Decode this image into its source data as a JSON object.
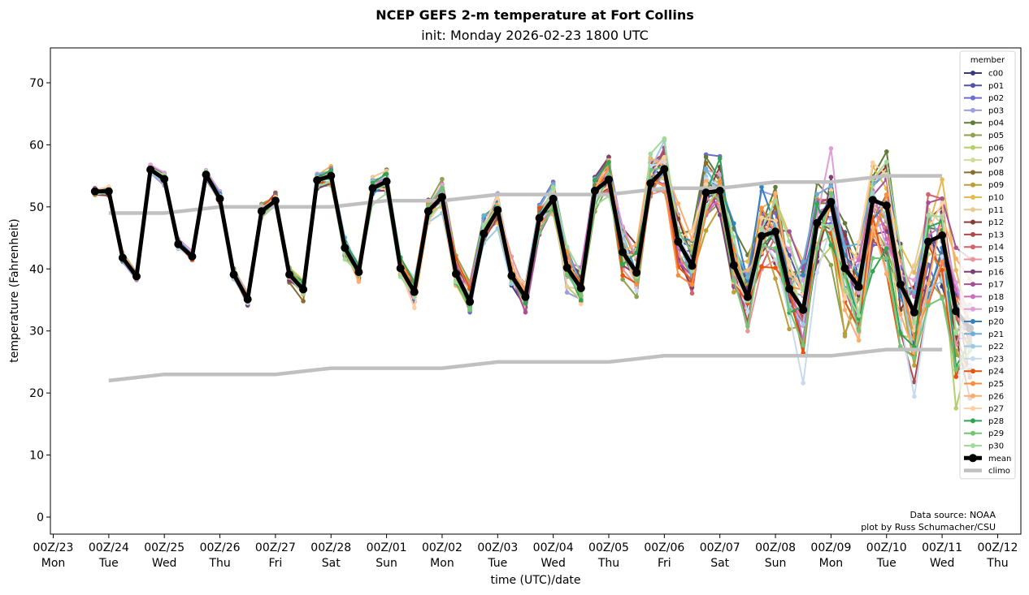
{
  "chart_data": {
    "type": "line",
    "title": "NCEP GEFS 2-m temperature at Fort Collins",
    "subtitle": "init: Monday 2026-02-23 1800 UTC",
    "xlabel": "time (UTC)/date",
    "ylabel": "temperature (Fahrenheit)",
    "ylim": [
      -2.8,
      75.8
    ],
    "yticks": [
      0,
      10,
      20,
      30,
      40,
      50,
      60,
      70
    ],
    "x_start": "2026-02-23 18Z",
    "x_step_hours": 6,
    "xlim_days": [
      -0.05,
      17.3
    ],
    "xticks": [
      {
        "day": 0,
        "line1": "00Z/23",
        "line2": "Mon"
      },
      {
        "day": 1,
        "line1": "00Z/24",
        "line2": "Tue"
      },
      {
        "day": 2,
        "line1": "00Z/25",
        "line2": "Wed"
      },
      {
        "day": 3,
        "line1": "00Z/26",
        "line2": "Thu"
      },
      {
        "day": 4,
        "line1": "00Z/27",
        "line2": "Fri"
      },
      {
        "day": 5,
        "line1": "00Z/28",
        "line2": "Sat"
      },
      {
        "day": 6,
        "line1": "00Z/01",
        "line2": "Sun"
      },
      {
        "day": 7,
        "line1": "00Z/02",
        "line2": "Mon"
      },
      {
        "day": 8,
        "line1": "00Z/03",
        "line2": "Tue"
      },
      {
        "day": 9,
        "line1": "00Z/04",
        "line2": "Wed"
      },
      {
        "day": 10,
        "line1": "00Z/05",
        "line2": "Thu"
      },
      {
        "day": 11,
        "line1": "00Z/06",
        "line2": "Fri"
      },
      {
        "day": 12,
        "line1": "00Z/07",
        "line2": "Sat"
      },
      {
        "day": 13,
        "line1": "00Z/08",
        "line2": "Sun"
      },
      {
        "day": 14,
        "line1": "00Z/09",
        "line2": "Mon"
      },
      {
        "day": 15,
        "line1": "00Z/10",
        "line2": "Tue"
      },
      {
        "day": 16,
        "line1": "00Z/11",
        "line2": "Wed"
      },
      {
        "day": 17,
        "line1": "00Z/12",
        "line2": "Thu"
      }
    ],
    "mean": [
      52.5,
      52.5,
      41.8,
      38.8,
      56.0,
      54.5,
      44.0,
      42.0,
      55.2,
      51.3,
      39.1,
      35.1,
      49.3,
      51.0,
      39.1,
      36.7,
      54.3,
      55.0,
      43.4,
      39.5,
      53.0,
      54.1,
      40.1,
      36.3,
      49.3,
      51.6,
      39.2,
      34.7,
      45.7,
      49.5,
      38.9,
      35.5,
      48.2,
      51.3,
      40.2,
      36.9,
      52.6,
      54.4,
      42.7,
      39.4,
      53.8,
      56.1,
      44.4,
      40.5,
      52.3,
      52.6,
      40.6,
      35.5,
      45.3,
      46.0,
      36.8,
      33.4,
      47.4,
      50.8,
      40.1,
      37.1,
      51.1,
      50.2,
      37.5,
      33.0,
      44.4,
      45.4,
      33.2,
      30.4
    ],
    "climo": {
      "days": [
        1,
        2,
        3,
        4,
        5,
        6,
        7,
        8,
        9,
        10,
        11,
        12,
        13,
        14,
        15,
        16
      ],
      "max": [
        49,
        49,
        50,
        50,
        50,
        51,
        51,
        52,
        52,
        52,
        53,
        53,
        54,
        54,
        55,
        55
      ],
      "min": [
        22,
        23,
        23,
        23,
        24,
        24,
        24,
        25,
        25,
        25,
        26,
        26,
        26,
        26,
        27,
        27
      ]
    },
    "members": [
      {
        "name": "c00",
        "color": "#393b79"
      },
      {
        "name": "p01",
        "color": "#5254a3"
      },
      {
        "name": "p02",
        "color": "#6b6ecf"
      },
      {
        "name": "p03",
        "color": "#9c9ede"
      },
      {
        "name": "p04",
        "color": "#637939"
      },
      {
        "name": "p05",
        "color": "#8ca252"
      },
      {
        "name": "p06",
        "color": "#b5cf6b"
      },
      {
        "name": "p07",
        "color": "#cedb9c"
      },
      {
        "name": "p08",
        "color": "#8c6d31"
      },
      {
        "name": "p09",
        "color": "#bd9e39"
      },
      {
        "name": "p10",
        "color": "#e7ba52"
      },
      {
        "name": "p11",
        "color": "#e7cb94"
      },
      {
        "name": "p12",
        "color": "#843c39"
      },
      {
        "name": "p13",
        "color": "#ad494a"
      },
      {
        "name": "p14",
        "color": "#d6616b"
      },
      {
        "name": "p15",
        "color": "#e7969c"
      },
      {
        "name": "p16",
        "color": "#7b4173"
      },
      {
        "name": "p17",
        "color": "#a55194"
      },
      {
        "name": "p18",
        "color": "#ce6dbd"
      },
      {
        "name": "p19",
        "color": "#de9ed6"
      },
      {
        "name": "p20",
        "color": "#3182bd"
      },
      {
        "name": "p21",
        "color": "#6baed6"
      },
      {
        "name": "p22",
        "color": "#9ecae1"
      },
      {
        "name": "p23",
        "color": "#c6dbef"
      },
      {
        "name": "p24",
        "color": "#e6550d"
      },
      {
        "name": "p25",
        "color": "#fd8d3c"
      },
      {
        "name": "p26",
        "color": "#fdae6b"
      },
      {
        "name": "p27",
        "color": "#fdd0a2"
      },
      {
        "name": "p28",
        "color": "#31a354"
      },
      {
        "name": "p29",
        "color": "#74c476"
      },
      {
        "name": "p30",
        "color": "#a1d99b"
      }
    ],
    "legend": {
      "title": "member",
      "placement": "upper-right",
      "mean_label": "mean",
      "climo_label": "climo",
      "mean_color": "#000000",
      "climo_color": "#c0c0c0"
    },
    "annotations": [
      "Data source: NOAA",
      "plot by Russ Schumacher/CSU"
    ]
  }
}
